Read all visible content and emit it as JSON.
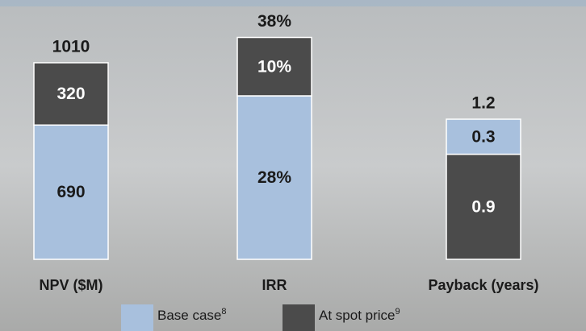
{
  "chart_data": [
    {
      "type": "bar",
      "stacked": true,
      "categories": [
        "NPV ($M)"
      ],
      "series": [
        {
          "name": "Base case",
          "note": "8",
          "color": "#a8c0dd",
          "label_color": "#1a1a1a",
          "values": [
            690
          ]
        },
        {
          "name": "At spot price",
          "note": "9",
          "color": "#4b4b4b",
          "label_color": "#ffffff",
          "values": [
            320
          ]
        }
      ],
      "total": 1010,
      "ylim": [
        0,
        1200
      ]
    },
    {
      "type": "bar",
      "stacked": true,
      "categories": [
        "IRR"
      ],
      "series": [
        {
          "name": "Base case",
          "color": "#a8c0dd",
          "label_color": "#1a1a1a",
          "values": [
            28
          ],
          "value_labels": [
            "28%"
          ]
        },
        {
          "name": "At spot price",
          "color": "#4b4b4b",
          "label_color": "#ffffff",
          "values": [
            10
          ],
          "value_labels": [
            "10%"
          ]
        }
      ],
      "total": 38,
      "total_label": "38%",
      "ylim": [
        0,
        40
      ]
    },
    {
      "type": "bar",
      "stacked": true,
      "categories": [
        "Payback (years)"
      ],
      "series": [
        {
          "name": "At spot price",
          "color": "#4b4b4b",
          "label_color": "#ffffff",
          "values": [
            0.9
          ]
        },
        {
          "name": "Base case",
          "color": "#a8c0dd",
          "label_color": "#1a1a1a",
          "values": [
            0.3
          ]
        }
      ],
      "total": 1.2,
      "ylim": [
        0,
        2
      ]
    }
  ]
}
